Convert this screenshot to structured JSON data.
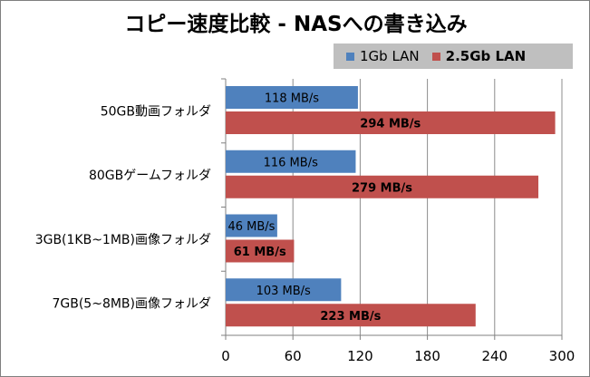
{
  "chart_data": {
    "type": "bar",
    "orientation": "horizontal",
    "title": "コピー速度比較 - NASへの書き込み",
    "categories": [
      "50GB動画フォルダ",
      "80GBゲームフォルダ",
      "3GB(1KB~1MB)画像フォルダ",
      "7GB(5~8MB)画像フォルダ"
    ],
    "series": [
      {
        "name": "1Gb LAN",
        "color": "#4f81bd",
        "values": [
          118,
          116,
          46,
          103
        ],
        "labels": [
          "118 MB/s",
          "116 MB/s",
          "46 MB/s",
          "103 MB/s"
        ]
      },
      {
        "name": "2.5Gb LAN",
        "color": "#c0504d",
        "values": [
          294,
          279,
          61,
          223
        ],
        "labels": [
          "294 MB/s",
          "279 MB/s",
          "61 MB/s",
          "223 MB/s"
        ]
      }
    ],
    "xlim": [
      0,
      300
    ],
    "xticks": [
      0,
      60,
      120,
      180,
      240,
      300
    ],
    "xtick_labels": [
      "0",
      "60",
      "120",
      "180",
      "240",
      "300"
    ],
    "grid": true,
    "legend": "top-right"
  }
}
